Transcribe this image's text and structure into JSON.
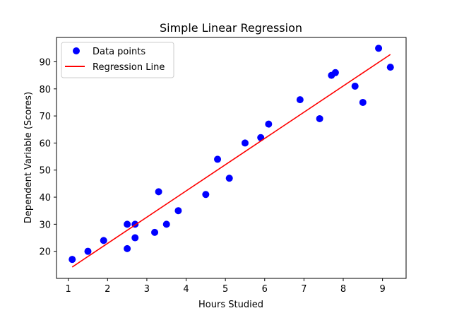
{
  "chart_data": {
    "type": "scatter",
    "title": "Simple Linear Regression",
    "xlabel": "Hours Studied",
    "ylabel": "Dependent Variable (Scores)",
    "xlim": [
      0.7,
      9.6
    ],
    "ylim": [
      10.0,
      99.0
    ],
    "xticks": [
      1,
      2,
      3,
      4,
      5,
      6,
      7,
      8,
      9
    ],
    "yticks": [
      20,
      30,
      40,
      50,
      60,
      70,
      80,
      90
    ],
    "grid": false,
    "legend_position": "top-left",
    "series": [
      {
        "name": "Data points",
        "kind": "scatter",
        "color": "#0000ff",
        "x": [
          1.1,
          1.5,
          1.9,
          2.5,
          2.5,
          2.7,
          2.7,
          3.2,
          3.3,
          3.5,
          3.8,
          4.5,
          4.8,
          5.1,
          5.5,
          5.9,
          6.1,
          6.9,
          7.4,
          7.7,
          7.8,
          8.3,
          8.5,
          8.9,
          9.2
        ],
        "y": [
          17,
          20,
          24,
          21,
          30,
          25,
          30,
          27,
          42,
          30,
          35,
          41,
          54,
          47,
          60,
          62,
          67,
          76,
          69,
          85,
          86,
          81,
          75,
          95,
          88
        ]
      },
      {
        "name": "Regression Line",
        "kind": "line",
        "color": "#ff0000",
        "x": [
          1.1,
          9.2
        ],
        "y": [
          14.2,
          92.7
        ]
      }
    ]
  }
}
